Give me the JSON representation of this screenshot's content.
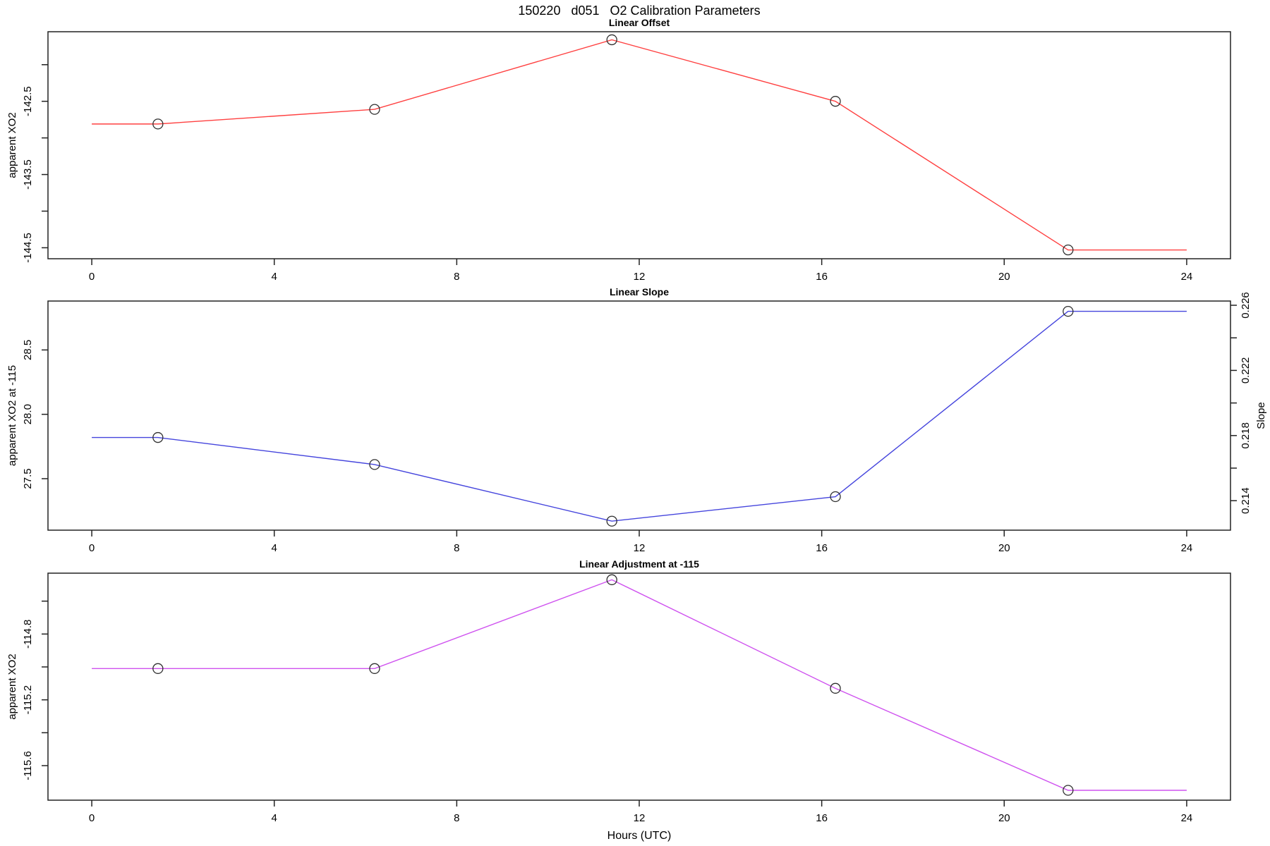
{
  "page": {
    "title": "150220   d051   O2 Calibration Parameters"
  },
  "x_axis": {
    "label": "Hours (UTC)",
    "ticks": [
      0,
      4,
      8,
      12,
      16,
      20,
      24
    ],
    "lim": [
      -0.96,
      24.96
    ]
  },
  "chart_data": [
    {
      "type": "line",
      "title": "Linear Offset",
      "ylabel": "apparent XO2",
      "color": "#ff4040",
      "marker_color": "#303030",
      "x": [
        0,
        1.45,
        6.2,
        11.4,
        16.3,
        21.4,
        24
      ],
      "values": [
        -142.81,
        -142.81,
        -142.61,
        -141.66,
        -142.5,
        -144.53,
        -144.53
      ],
      "marker_indices": [
        1,
        2,
        3,
        4,
        5
      ],
      "ylim": [
        -144.65,
        -141.55
      ],
      "yticks": [
        -144.5,
        -144.0,
        -143.5,
        -143.0,
        -142.5,
        -142.0
      ],
      "ytick_labels": [
        "-144.5",
        "",
        "-143.5",
        "",
        "-142.5",
        ""
      ]
    },
    {
      "type": "line",
      "title": "Linear Slope",
      "ylabel": "apparent XO2 at -115",
      "color": "#4545dd",
      "marker_color": "#303030",
      "x": [
        0,
        1.45,
        6.2,
        11.4,
        16.3,
        21.4,
        24
      ],
      "values": [
        27.82,
        27.82,
        27.61,
        27.17,
        27.36,
        28.8,
        28.8
      ],
      "marker_indices": [
        1,
        2,
        3,
        4,
        5
      ],
      "ylim": [
        27.1,
        28.88
      ],
      "yticks": [
        27.5,
        28.0,
        28.5
      ],
      "ytick_labels": [
        "27.5",
        "28.0",
        "28.5"
      ],
      "right_axis": {
        "label": "Slope",
        "lim": [
          0.21219,
          0.22626
        ],
        "ticks": [
          0.214,
          0.216,
          0.218,
          0.22,
          0.222,
          0.224,
          0.226
        ],
        "tick_labels": [
          "0.214",
          "",
          "0.218",
          "",
          "0.222",
          "",
          "0.226"
        ],
        "values": [
          0.2178,
          0.2178,
          0.2162,
          0.2128,
          0.2143,
          0.2257,
          0.2257
        ]
      }
    },
    {
      "type": "line",
      "title": "Linear Adjustment at -115",
      "ylabel": "apparent XO2",
      "color": "#cf52ef",
      "marker_color": "#303030",
      "x": [
        0,
        1.45,
        6.2,
        11.4,
        16.3,
        21.4,
        24
      ],
      "values": [
        -115.01,
        -115.01,
        -115.01,
        -114.47,
        -115.13,
        -115.75,
        -115.75
      ],
      "marker_indices": [
        1,
        2,
        3,
        4,
        5
      ],
      "ylim": [
        -115.81,
        -114.43
      ],
      "yticks": [
        -115.6,
        -115.4,
        -115.2,
        -115.0,
        -114.8,
        -114.6
      ],
      "ytick_labels": [
        "-115.6",
        "",
        "-115.2",
        "",
        "-114.8",
        ""
      ]
    }
  ]
}
